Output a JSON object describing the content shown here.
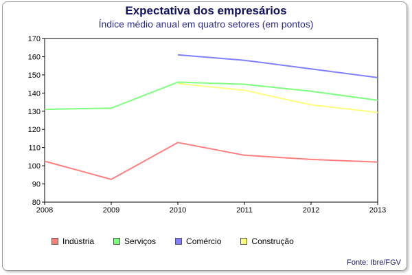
{
  "chart_data": {
    "type": "line",
    "title": "Expectativa dos empresários",
    "subtitle": "Índice médio anual em quatro setores (em pontos)",
    "x": [
      "2008",
      "2009",
      "2010",
      "2011",
      "2012",
      "2013"
    ],
    "ylim": [
      80,
      170
    ],
    "yticks": [
      80,
      90,
      100,
      110,
      120,
      130,
      140,
      150,
      160,
      170
    ],
    "grid": false,
    "legend_position": "bottom-left",
    "series": [
      {
        "name": "Indústria",
        "color": "#ff7f7f",
        "values": [
          102.5,
          92.5,
          112.8,
          105.8,
          103.5,
          102.0
        ]
      },
      {
        "name": "Serviços",
        "color": "#7fff7f",
        "values": [
          131.0,
          131.7,
          146.0,
          144.8,
          141.0,
          136.0
        ]
      },
      {
        "name": "Comércio",
        "color": "#7f7fff",
        "values": [
          null,
          null,
          161.0,
          158.0,
          153.3,
          148.5
        ]
      },
      {
        "name": "Construção",
        "color": "#ffff7f",
        "values": [
          null,
          null,
          145.2,
          141.5,
          133.5,
          129.3
        ]
      }
    ],
    "source": "Fonte: Ibre/FGV"
  }
}
